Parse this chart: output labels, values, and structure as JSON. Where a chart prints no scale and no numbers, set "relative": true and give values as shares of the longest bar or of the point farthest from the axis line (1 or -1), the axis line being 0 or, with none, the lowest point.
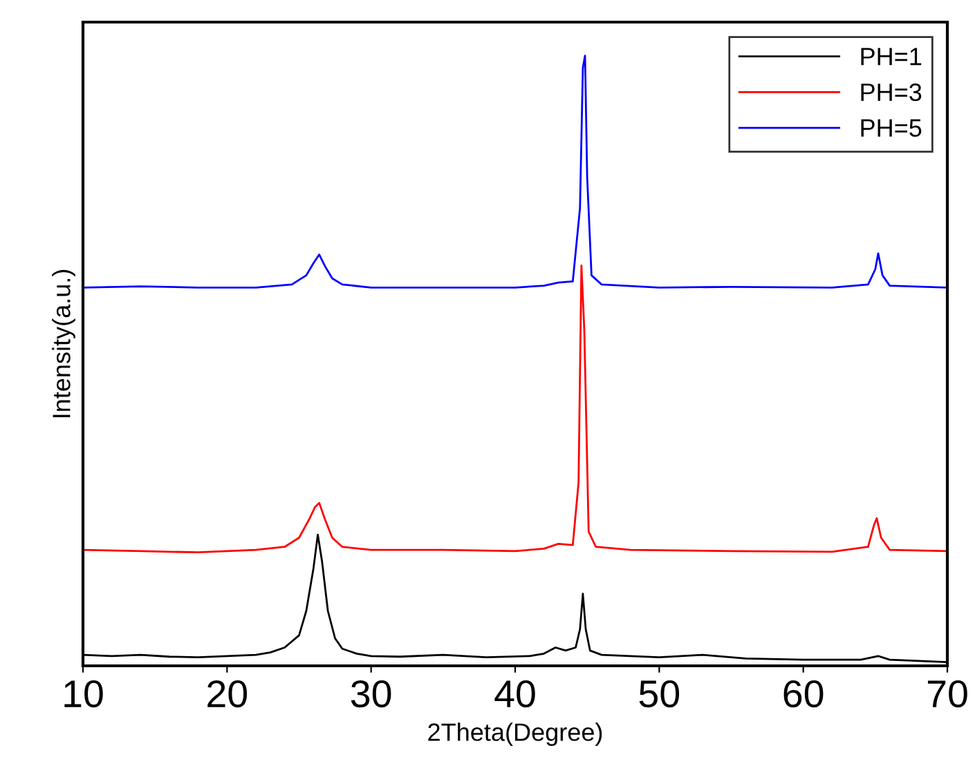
{
  "chart_data": {
    "type": "line",
    "xlabel": "2Theta(Degree)",
    "ylabel": "Intensity(a.u.)",
    "relative": true,
    "xlim": [
      10,
      70
    ],
    "xticks": [
      10,
      20,
      30,
      40,
      50,
      60,
      70
    ],
    "legend": "top right",
    "grid": false,
    "marker": "none",
    "line_style": "solid",
    "series": [
      {
        "name": "PH=1",
        "color": "#000000",
        "x": [
          10,
          12,
          14,
          16,
          18,
          20,
          22,
          23,
          24,
          25,
          25.5,
          26,
          26.3,
          26.6,
          27,
          27.5,
          28,
          29,
          30,
          32,
          35,
          38,
          41,
          42,
          42.8,
          43.5,
          44.2,
          44.5,
          44.7,
          44.9,
          45.2,
          46,
          48,
          50,
          53,
          56,
          60,
          64,
          65.2,
          66,
          68,
          70
        ],
        "values": [
          0.018,
          0.016,
          0.018,
          0.015,
          0.014,
          0.016,
          0.018,
          0.022,
          0.03,
          0.05,
          0.09,
          0.16,
          0.215,
          0.17,
          0.09,
          0.045,
          0.028,
          0.02,
          0.016,
          0.015,
          0.018,
          0.014,
          0.016,
          0.02,
          0.03,
          0.025,
          0.03,
          0.06,
          0.118,
          0.06,
          0.025,
          0.018,
          0.016,
          0.014,
          0.018,
          0.012,
          0.01,
          0.01,
          0.016,
          0.01,
          0.008,
          0.006
        ]
      },
      {
        "name": "PH=3",
        "color": "#ff0000",
        "x": [
          10,
          14,
          18,
          22,
          24,
          25,
          25.7,
          26.1,
          26.4,
          26.8,
          27.3,
          28,
          30,
          35,
          40,
          42,
          43,
          44,
          44.4,
          44.6,
          44.8,
          45.1,
          45.6,
          48,
          55,
          62,
          64.5,
          64.9,
          65.1,
          65.4,
          66,
          70
        ],
        "values": [
          0.19,
          0.188,
          0.186,
          0.19,
          0.195,
          0.21,
          0.24,
          0.26,
          0.267,
          0.24,
          0.21,
          0.195,
          0.19,
          0.19,
          0.188,
          0.192,
          0.2,
          0.198,
          0.3,
          0.656,
          0.55,
          0.22,
          0.195,
          0.19,
          0.188,
          0.187,
          0.195,
          0.23,
          0.242,
          0.21,
          0.19,
          0.188
        ]
      },
      {
        "name": "PH=5",
        "color": "#0000ff",
        "x": [
          10,
          14,
          18,
          22,
          24.5,
          25.5,
          26,
          26.4,
          26.8,
          27.3,
          28,
          30,
          35,
          40,
          42,
          43,
          44,
          44.5,
          44.7,
          44.85,
          45,
          45.3,
          46,
          50,
          55,
          62,
          64.5,
          65,
          65.2,
          65.5,
          66,
          70
        ],
        "values": [
          0.62,
          0.622,
          0.62,
          0.62,
          0.625,
          0.64,
          0.66,
          0.674,
          0.655,
          0.635,
          0.625,
          0.62,
          0.62,
          0.62,
          0.623,
          0.628,
          0.63,
          0.75,
          0.98,
          1.0,
          0.8,
          0.64,
          0.625,
          0.62,
          0.621,
          0.62,
          0.625,
          0.65,
          0.676,
          0.64,
          0.623,
          0.62
        ]
      }
    ]
  }
}
